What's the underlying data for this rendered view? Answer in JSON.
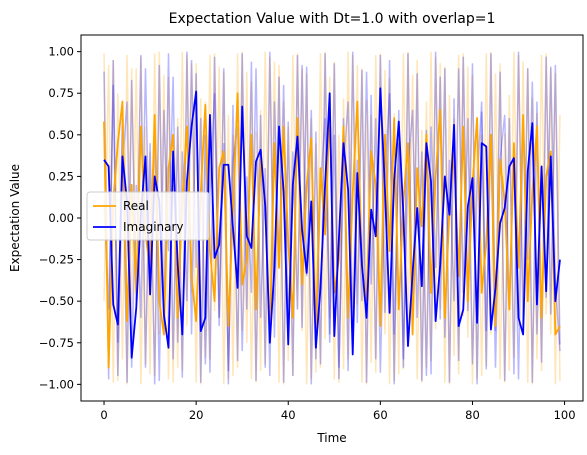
{
  "chart_data": {
    "type": "line",
    "title": "Expectation Value with Dt=1.0 with overlap=1",
    "xlabel": "Time",
    "ylabel": "Expectation Value",
    "xlim": [
      -5,
      104
    ],
    "ylim": [
      -1.1,
      1.1
    ],
    "xticks": [
      0,
      20,
      40,
      60,
      80,
      100
    ],
    "yticks": [
      1.0,
      0.75,
      0.5,
      0.25,
      0.0,
      -0.25,
      -0.5,
      -0.75,
      -1.0
    ],
    "ytick_labels": [
      "1.00",
      "0.75",
      "0.50",
      "0.25",
      "0.00",
      "−0.25",
      "−0.50",
      "−0.75",
      "−1.00"
    ],
    "grid": false,
    "legend": {
      "placement": "center-left",
      "entries": [
        {
          "label": "Real",
          "color": "#ffa500"
        },
        {
          "label": "Imaginary",
          "color": "#0000ff"
        }
      ]
    },
    "series": [
      {
        "name": "Real",
        "color": "#ffa500",
        "x": [
          0,
          1,
          2,
          3,
          4,
          5,
          6,
          7,
          8,
          9,
          10,
          11,
          12,
          13,
          14,
          15,
          16,
          17,
          18,
          19,
          20,
          21,
          22,
          23,
          24,
          25,
          26,
          27,
          28,
          29,
          30,
          31,
          32,
          33,
          34,
          35,
          36,
          37,
          38,
          39,
          40,
          41,
          42,
          43,
          44,
          45,
          46,
          47,
          48,
          49,
          50,
          51,
          52,
          53,
          54,
          55,
          56,
          57,
          58,
          59,
          60,
          61,
          62,
          63,
          64,
          65,
          66,
          67,
          68,
          69,
          70,
          71,
          72,
          73,
          74,
          75,
          76,
          77,
          78,
          79,
          80,
          81,
          82,
          83,
          84,
          85,
          86,
          87,
          88,
          89,
          90,
          91,
          92,
          93,
          94,
          95,
          96,
          97,
          98,
          99
        ],
        "values": [
          0.58,
          -0.9,
          0.1,
          0.45,
          0.7,
          -0.62,
          0.2,
          -0.45,
          0.55,
          -0.1,
          -0.3,
          0.62,
          -0.5,
          -0.7,
          0.3,
          0.5,
          -0.6,
          0.1,
          0.55,
          -0.35,
          -0.62,
          0.15,
          0.68,
          -0.2,
          -0.5,
          0.3,
          0.4,
          -0.65,
          0.05,
          0.75,
          -0.4,
          -0.25,
          0.5,
          -0.55,
          0.35,
          0.1,
          -0.72,
          0.45,
          -0.3,
          0.55,
          -0.15,
          -0.6,
          0.6,
          -0.4,
          0.2,
          0.48,
          -0.7,
          0.3,
          -0.1,
          0.65,
          -0.45,
          -0.25,
          0.55,
          -0.6,
          0.15,
          0.7,
          -0.3,
          -0.5,
          0.4,
          0.2,
          -0.65,
          0.5,
          -0.2,
          0.6,
          -0.55,
          0.1,
          0.45,
          -0.7,
          0.3,
          -0.05,
          0.5,
          -0.45,
          0.25,
          0.65,
          -0.6,
          0.05,
          0.4,
          -0.35,
          0.55,
          -0.5,
          0.2,
          0.6,
          -0.45,
          -0.15,
          0.5,
          -0.65,
          0.35,
          0.1,
          -0.55,
          0.45,
          -0.3,
          0.62,
          -0.5,
          0.15,
          0.55,
          -0.6,
          0.25,
          0.4,
          -0.7,
          -0.65
        ]
      },
      {
        "name": "Imaginary",
        "color": "#0000ff",
        "x": [
          0,
          1,
          2,
          3,
          4,
          5,
          6,
          7,
          8,
          9,
          10,
          11,
          12,
          13,
          14,
          15,
          16,
          17,
          18,
          19,
          20,
          21,
          22,
          23,
          24,
          25,
          26,
          27,
          28,
          29,
          30,
          31,
          32,
          33,
          34,
          35,
          36,
          37,
          38,
          39,
          40,
          41,
          42,
          43,
          44,
          45,
          46,
          47,
          48,
          49,
          50,
          51,
          52,
          53,
          54,
          55,
          56,
          57,
          58,
          59,
          60,
          61,
          62,
          63,
          64,
          65,
          66,
          67,
          68,
          69,
          70,
          71,
          72,
          73,
          74,
          75,
          76,
          77,
          78,
          79,
          80,
          81,
          82,
          83,
          84,
          85,
          86,
          87,
          88,
          89,
          90,
          91,
          92,
          93,
          94,
          95,
          96,
          97,
          98,
          99
        ],
        "values": [
          0.35,
          0.31,
          -0.52,
          -0.64,
          0.37,
          0.1,
          -0.84,
          -0.54,
          0.02,
          0.37,
          -0.46,
          0.25,
          0.1,
          -0.58,
          -0.78,
          0.4,
          -0.28,
          -0.7,
          0.22,
          0.55,
          0.76,
          -0.68,
          -0.6,
          0.62,
          -0.24,
          -0.16,
          0.32,
          0.32,
          -0.06,
          -0.42,
          0.67,
          -0.11,
          -0.18,
          0.34,
          0.41,
          0.07,
          -0.75,
          -0.3,
          0.55,
          0.16,
          -0.76,
          0.2,
          0.49,
          -0.07,
          -0.33,
          0.1,
          -0.78,
          -0.42,
          0.2,
          0.75,
          -0.71,
          -0.12,
          0.45,
          0.17,
          -0.82,
          0.27,
          -0.28,
          -0.6,
          0.05,
          -0.11,
          0.78,
          0.17,
          -0.57,
          0.23,
          0.58,
          0.02,
          -0.77,
          -0.33,
          0.06,
          -0.41,
          0.45,
          0.22,
          -0.62,
          -0.28,
          0.25,
          0.02,
          0.56,
          -0.65,
          -0.55,
          0.07,
          0.24,
          -0.63,
          0.45,
          0.43,
          -0.67,
          -0.42,
          -0.03,
          0.06,
          0.31,
          0.36,
          -0.6,
          -0.7,
          0.28,
          0.57,
          -0.52,
          0.31,
          -0.44,
          0.37,
          -0.5,
          -0.25
        ]
      }
    ],
    "faint_series": [
      {
        "color": "#ffa500",
        "values": [
          0.99,
          -0.8,
          0.95,
          -0.98,
          0.65,
          -1.0,
          0.9,
          -0.55,
          0.97,
          -0.88,
          0.4,
          -0.95,
          1.0,
          -0.7,
          0.85,
          -0.99,
          0.6,
          -0.92,
          0.98,
          -0.45,
          0.93,
          -1.0,
          0.7,
          -0.85,
          0.99,
          -0.6,
          0.88,
          -0.97,
          0.5,
          -0.9,
          1.0,
          -0.75,
          0.82,
          -0.99,
          0.65,
          -0.88,
          0.97,
          -0.5,
          0.92,
          -1.0,
          0.55,
          -0.95,
          0.99,
          -0.68,
          0.87,
          -0.97,
          0.45,
          -0.9,
          1.0,
          -0.6,
          0.94,
          -0.99,
          0.72,
          -0.85,
          0.98,
          -0.52,
          0.9,
          -1.0,
          0.62,
          -0.93,
          0.99,
          -0.7,
          0.84,
          -0.98,
          0.48,
          -0.91,
          1.0,
          -0.64,
          0.95,
          -0.99,
          0.7,
          -0.86,
          0.97,
          -0.55,
          0.91,
          -1.0,
          0.6,
          -0.94,
          0.99,
          -0.72,
          0.86,
          -0.97,
          0.5,
          -0.89,
          1.0,
          -0.66,
          0.93,
          -0.99,
          0.74,
          -0.84,
          0.98,
          -0.58,
          0.9,
          -1.0,
          0.63,
          -0.92,
          0.99,
          -0.7,
          0.87,
          -0.98
        ]
      },
      {
        "color": "#ffa500",
        "values": [
          -0.5,
          0.92,
          -0.99,
          0.75,
          -0.85,
          0.98,
          -0.6,
          0.9,
          -1.0,
          0.55,
          -0.94,
          0.99,
          -0.7,
          0.86,
          -0.97,
          0.5,
          -0.9,
          1.0,
          -0.65,
          0.93,
          -0.99,
          0.72,
          -0.84,
          0.98,
          -0.56,
          0.91,
          -1.0,
          0.62,
          -0.95,
          0.99,
          -0.68,
          0.88,
          -0.97,
          0.52,
          -0.92,
          1.0,
          -0.64,
          0.94,
          -0.99,
          0.7,
          -0.86,
          0.98,
          -0.55,
          0.9,
          -1.0,
          0.6,
          -0.93,
          0.99,
          -0.73,
          0.85,
          -0.97,
          0.5,
          -0.91,
          1.0,
          -0.66,
          0.92,
          -0.99,
          0.71,
          -0.87,
          0.98,
          -0.57,
          0.89,
          -1.0,
          0.63,
          -0.94,
          0.99,
          -0.69,
          0.86,
          -0.97,
          0.53,
          -0.9,
          1.0,
          -0.67,
          0.93,
          -0.99,
          0.74,
          -0.83,
          0.98,
          -0.59,
          0.91,
          -1.0,
          0.61,
          -0.95,
          0.99,
          -0.7,
          0.87,
          -0.97,
          0.51,
          -0.92,
          1.0,
          -0.65,
          0.94,
          -0.99,
          0.72,
          -0.85,
          0.98,
          -0.58,
          0.9,
          -1.0,
          0.62
        ]
      },
      {
        "color": "#0000ff",
        "values": [
          0.88,
          -0.97,
          0.95,
          -0.75,
          0.6,
          -0.99,
          0.83,
          -0.5,
          0.98,
          -0.9,
          0.45,
          -1.0,
          0.92,
          -0.65,
          0.99,
          -0.85,
          0.55,
          -0.96,
          1.0,
          -0.7,
          0.87,
          -0.99,
          0.5,
          -0.93,
          0.97,
          -0.6,
          0.9,
          -1.0,
          0.68,
          -0.86,
          0.99,
          -0.55,
          0.94,
          -0.98,
          0.62,
          -0.9,
          1.0,
          -0.72,
          0.85,
          -0.99,
          0.58,
          -0.95,
          0.98,
          -0.66,
          0.91,
          -1.0,
          0.52,
          -0.88,
          0.99,
          -0.7,
          0.93,
          -0.97,
          0.6,
          -0.92,
          1.0,
          -0.63,
          0.89,
          -0.99,
          0.74,
          -0.85,
          0.98,
          -0.57,
          0.95,
          -1.0,
          0.65,
          -0.9,
          0.99,
          -0.69,
          0.87,
          -0.98,
          0.53,
          -0.94,
          1.0,
          -0.61,
          0.9,
          -0.99,
          0.72,
          -0.86,
          0.97,
          -0.56,
          0.93,
          -1.0,
          0.64,
          -0.91,
          0.99,
          -0.68,
          0.88,
          -0.98,
          0.6,
          -0.94,
          1.0,
          -0.66,
          0.9,
          -0.99,
          0.7,
          -0.87,
          0.97,
          -0.58,
          0.92,
          -0.76
        ]
      },
      {
        "color": "#0000ff",
        "values": [
          0.1,
          -0.55,
          0.8,
          -0.95,
          0.3,
          0.7,
          -0.9,
          0.2,
          -0.6,
          0.9,
          -0.35,
          0.5,
          -0.98,
          0.65,
          -0.2,
          0.85,
          -0.75,
          0.4,
          -0.5,
          0.95,
          -0.3,
          0.6,
          -0.88,
          0.15,
          0.75,
          -0.65,
          0.45,
          -0.92,
          0.35,
          0.55,
          -0.8,
          0.25,
          -0.45,
          0.9,
          -0.6,
          0.3,
          -0.95,
          0.7,
          -0.25,
          0.8,
          -0.7,
          0.4,
          -0.55,
          0.92,
          -0.35,
          0.65,
          -0.85,
          0.2,
          0.6,
          -0.75,
          0.5,
          -0.9,
          0.3,
          0.7,
          -0.65,
          0.35,
          -0.5,
          0.88,
          -0.4,
          0.6,
          -0.93,
          0.25,
          0.75,
          -0.7,
          0.45,
          -0.85,
          0.3,
          0.65,
          -0.6,
          0.4,
          -0.95,
          0.55,
          -0.3,
          0.85,
          -0.72,
          0.35,
          -0.5,
          0.9,
          -0.45,
          0.6,
          -0.88,
          0.2,
          0.7,
          -0.68,
          0.5,
          -0.9,
          0.35,
          0.62,
          -0.55,
          0.4,
          -0.97,
          0.6,
          -0.25,
          0.82,
          -0.7,
          0.3,
          -0.48,
          0.91,
          -0.4,
          -0.8
        ]
      }
    ]
  }
}
